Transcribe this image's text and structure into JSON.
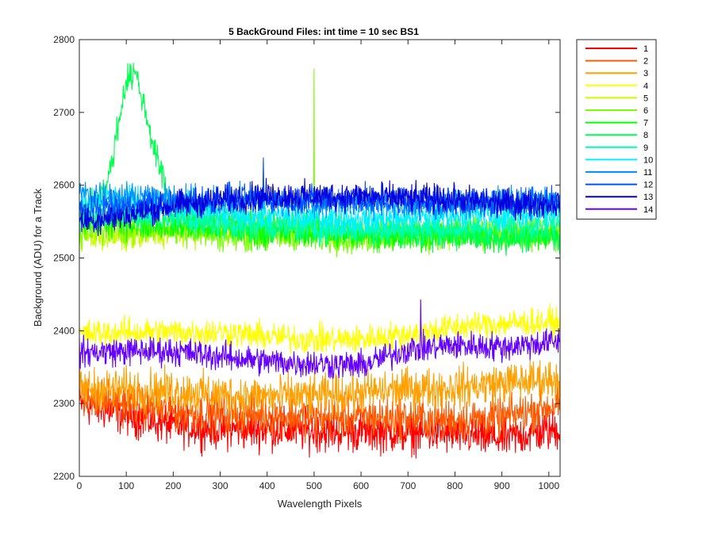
{
  "chart_data": {
    "type": "line",
    "title": "5 BackGround Files: int time = 10 sec   BS1",
    "xlabel": "Wavelength Pixels",
    "ylabel": "Background (ADU)  for a Track",
    "xlim": [
      0,
      1024
    ],
    "ylim": [
      2200,
      2800
    ],
    "xticks": [
      0,
      100,
      200,
      300,
      400,
      500,
      600,
      700,
      800,
      900,
      1000
    ],
    "yticks": [
      2200,
      2300,
      2400,
      2500,
      2600,
      2700,
      2800
    ],
    "grid": false,
    "legend_position": "outside-top-right",
    "series": [
      {
        "name": "1",
        "color": "#ff0000",
        "noise": 20,
        "x": [
          0,
          100,
          200,
          300,
          400,
          500,
          600,
          700,
          800,
          900,
          1024
        ],
        "y": [
          2300,
          2285,
          2270,
          2265,
          2265,
          2262,
          2262,
          2260,
          2258,
          2252,
          2265
        ]
      },
      {
        "name": "2",
        "color": "#ff5a00",
        "noise": 20,
        "x": [
          0,
          100,
          200,
          300,
          400,
          500,
          600,
          700,
          800,
          900,
          1024
        ],
        "y": [
          2310,
          2300,
          2290,
          2285,
          2285,
          2280,
          2282,
          2280,
          2278,
          2280,
          2300
        ]
      },
      {
        "name": "3",
        "color": "#ffa000",
        "noise": 20,
        "x": [
          0,
          100,
          200,
          300,
          400,
          500,
          600,
          700,
          800,
          900,
          1024
        ],
        "y": [
          2320,
          2320,
          2318,
          2312,
          2310,
          2310,
          2315,
          2320,
          2322,
          2328,
          2335
        ]
      },
      {
        "name": "4",
        "color": "#ffff00",
        "noise": 14,
        "x": [
          0,
          100,
          200,
          300,
          400,
          500,
          600,
          700,
          800,
          900,
          1024
        ],
        "y": [
          2395,
          2398,
          2398,
          2398,
          2392,
          2388,
          2388,
          2395,
          2405,
          2410,
          2412
        ]
      },
      {
        "name": "5",
        "color": "#c8ff00",
        "noise": 14,
        "x": [
          0,
          100,
          200,
          300,
          400,
          500,
          600,
          700,
          800,
          900,
          1024
        ],
        "y": [
          2530,
          2528,
          2535,
          2540,
          2540,
          2540,
          2538,
          2535,
          2535,
          2540,
          2540
        ]
      },
      {
        "name": "6",
        "color": "#78ff00",
        "noise": 14,
        "x": [
          0,
          100,
          200,
          300,
          400,
          500,
          600,
          700,
          800,
          900,
          1024
        ],
        "y": [
          2535,
          2540,
          2540,
          2530,
          2530,
          2528,
          2525,
          2530,
          2532,
          2530,
          2532
        ]
      },
      {
        "name": "7",
        "color": "#00ff00",
        "noise": 14,
        "x": [
          0,
          100,
          200,
          300,
          400,
          500,
          600,
          700,
          800,
          900,
          1024
        ],
        "y": [
          2550,
          2548,
          2545,
          2540,
          2535,
          2535,
          2530,
          2532,
          2530,
          2528,
          2530
        ]
      },
      {
        "name": "8",
        "color": "#00ff50",
        "noise": 14,
        "x": [
          0,
          60,
          100,
          120,
          160,
          200,
          300,
          400,
          500,
          600,
          700,
          800,
          900,
          1024
        ],
        "y": [
          2560,
          2600,
          2745,
          2755,
          2650,
          2560,
          2555,
          2545,
          2545,
          2535,
          2535,
          2532,
          2528,
          2530
        ]
      },
      {
        "name": "9",
        "color": "#00ffb4",
        "noise": 14,
        "x": [
          0,
          100,
          200,
          300,
          400,
          500,
          600,
          700,
          800,
          900,
          1024
        ],
        "y": [
          2555,
          2560,
          2555,
          2545,
          2545,
          2540,
          2540,
          2540,
          2540,
          2545,
          2550
        ]
      },
      {
        "name": "10",
        "color": "#00f0ff",
        "noise": 14,
        "x": [
          0,
          100,
          200,
          300,
          400,
          500,
          600,
          700,
          800,
          900,
          1024
        ],
        "y": [
          2580,
          2580,
          2570,
          2560,
          2558,
          2555,
          2552,
          2555,
          2560,
          2560,
          2565
        ]
      },
      {
        "name": "11",
        "color": "#0096ff",
        "noise": 14,
        "x": [
          0,
          100,
          200,
          300,
          400,
          500,
          600,
          700,
          800,
          900,
          1024
        ],
        "y": [
          2590,
          2585,
          2580,
          2580,
          2578,
          2575,
          2575,
          2572,
          2575,
          2578,
          2580
        ]
      },
      {
        "name": "12",
        "color": "#0050ff",
        "noise": 14,
        "x": [
          0,
          100,
          200,
          300,
          400,
          500,
          600,
          700,
          800,
          900,
          1024
        ],
        "y": [
          2565,
          2570,
          2575,
          2580,
          2582,
          2580,
          2580,
          2578,
          2578,
          2575,
          2578
        ]
      },
      {
        "name": "13",
        "color": "#0000dc",
        "noise": 14,
        "x": [
          0,
          100,
          200,
          300,
          400,
          500,
          600,
          700,
          800,
          900,
          1024
        ],
        "y": [
          2550,
          2558,
          2572,
          2580,
          2585,
          2585,
          2585,
          2582,
          2580,
          2575,
          2575
        ]
      },
      {
        "name": "14",
        "color": "#6400ff",
        "noise": 14,
        "x": [
          0,
          100,
          200,
          300,
          400,
          500,
          600,
          700,
          800,
          900,
          1024
        ],
        "y": [
          2370,
          2372,
          2372,
          2365,
          2358,
          2355,
          2352,
          2375,
          2380,
          2378,
          2385
        ]
      }
    ],
    "spikes": [
      {
        "series": "6",
        "x": 500,
        "y": 2760
      },
      {
        "series": "14",
        "x": 727,
        "y": 2443
      },
      {
        "series": "12",
        "x": 392,
        "y": 2638
      }
    ]
  }
}
